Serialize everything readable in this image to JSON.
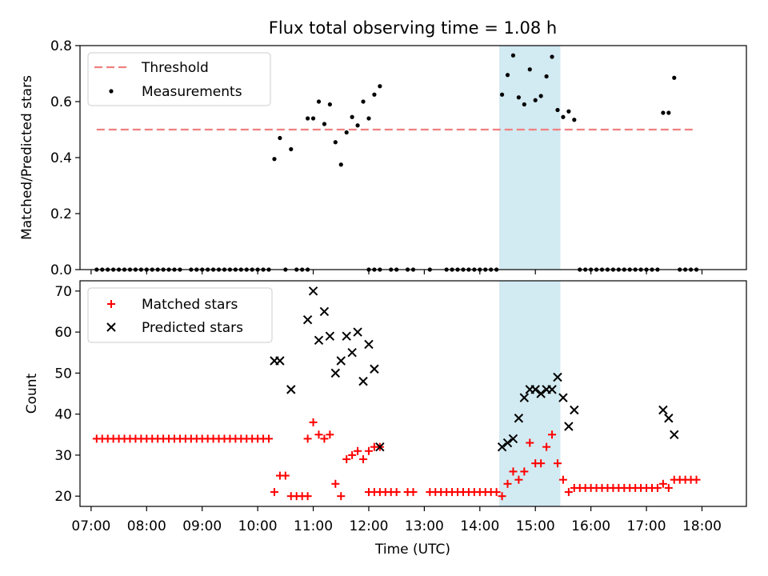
{
  "chart_data": [
    {
      "type": "scatter",
      "title": "Flux total observing time = 1.08 h",
      "xlabel": "",
      "ylabel": "Matched/Predicted stars",
      "ylim": [
        0,
        0.8
      ],
      "yticks": [
        "0.0",
        "0.2",
        "0.4",
        "0.6",
        "0.8"
      ],
      "xlim": [
        "06:48",
        "18:48"
      ],
      "legend_position": "top-left",
      "highlight_span": {
        "from": "14:21",
        "to": "15:27",
        "color": "#add8e6"
      },
      "threshold": {
        "name": "Threshold",
        "y": 0.5,
        "x_from": "07:06",
        "x_to": "17:54",
        "color": "#f08080"
      },
      "series": [
        {
          "name": "Measurements",
          "color": "#000000",
          "points": [
            [
              "07:06",
              0
            ],
            [
              "07:12",
              0
            ],
            [
              "07:18",
              0
            ],
            [
              "07:24",
              0
            ],
            [
              "07:30",
              0
            ],
            [
              "07:36",
              0
            ],
            [
              "07:42",
              0
            ],
            [
              "07:48",
              0
            ],
            [
              "07:54",
              0
            ],
            [
              "08:00",
              0
            ],
            [
              "08:06",
              0
            ],
            [
              "08:12",
              0
            ],
            [
              "08:18",
              0
            ],
            [
              "08:24",
              0
            ],
            [
              "08:30",
              0
            ],
            [
              "08:36",
              0
            ],
            [
              "08:48",
              0
            ],
            [
              "08:54",
              0
            ],
            [
              "09:00",
              0
            ],
            [
              "09:06",
              0
            ],
            [
              "09:12",
              0
            ],
            [
              "09:18",
              0
            ],
            [
              "09:24",
              0
            ],
            [
              "09:30",
              0
            ],
            [
              "09:36",
              0
            ],
            [
              "09:42",
              0
            ],
            [
              "09:48",
              0
            ],
            [
              "09:54",
              0
            ],
            [
              "10:00",
              0
            ],
            [
              "10:06",
              0
            ],
            [
              "10:12",
              0
            ],
            [
              "10:18",
              0.395
            ],
            [
              "10:24",
              0.47
            ],
            [
              "10:30",
              0
            ],
            [
              "10:36",
              0.43
            ],
            [
              "10:42",
              0
            ],
            [
              "10:48",
              0
            ],
            [
              "10:54",
              0
            ],
            [
              "10:54",
              0.54
            ],
            [
              "11:00",
              0.54
            ],
            [
              "11:06",
              0.6
            ],
            [
              "11:12",
              0.52
            ],
            [
              "11:18",
              0.59
            ],
            [
              "11:24",
              0.455
            ],
            [
              "11:30",
              0.375
            ],
            [
              "11:36",
              0.49
            ],
            [
              "11:42",
              0.545
            ],
            [
              "11:48",
              0.515
            ],
            [
              "11:54",
              0.6
            ],
            [
              "12:00",
              0.54
            ],
            [
              "12:06",
              0.625
            ],
            [
              "12:12",
              0.655
            ],
            [
              "12:00",
              0
            ],
            [
              "12:06",
              0
            ],
            [
              "12:12",
              0
            ],
            [
              "12:24",
              0
            ],
            [
              "12:30",
              0
            ],
            [
              "12:42",
              0
            ],
            [
              "12:48",
              0
            ],
            [
              "13:06",
              0
            ],
            [
              "13:24",
              0
            ],
            [
              "13:30",
              0
            ],
            [
              "13:36",
              0
            ],
            [
              "13:42",
              0
            ],
            [
              "13:48",
              0
            ],
            [
              "13:54",
              0
            ],
            [
              "14:00",
              0
            ],
            [
              "14:06",
              0
            ],
            [
              "14:12",
              0
            ],
            [
              "14:18",
              0
            ],
            [
              "14:24",
              0.625
            ],
            [
              "14:30",
              0.695
            ],
            [
              "14:36",
              0.765
            ],
            [
              "14:42",
              0.615
            ],
            [
              "14:48",
              0.59
            ],
            [
              "14:54",
              0.715
            ],
            [
              "15:00",
              0.605
            ],
            [
              "15:06",
              0.62
            ],
            [
              "15:12",
              0.69
            ],
            [
              "15:18",
              0.76
            ],
            [
              "15:24",
              0.57
            ],
            [
              "15:30",
              0.545
            ],
            [
              "15:36",
              0.565
            ],
            [
              "15:42",
              0.535
            ],
            [
              "15:48",
              0
            ],
            [
              "15:54",
              0
            ],
            [
              "16:00",
              0
            ],
            [
              "16:06",
              0
            ],
            [
              "16:12",
              0
            ],
            [
              "16:18",
              0
            ],
            [
              "16:24",
              0
            ],
            [
              "16:30",
              0
            ],
            [
              "16:36",
              0
            ],
            [
              "16:42",
              0
            ],
            [
              "16:48",
              0
            ],
            [
              "16:54",
              0
            ],
            [
              "17:00",
              0
            ],
            [
              "17:06",
              0
            ],
            [
              "17:12",
              0
            ],
            [
              "17:18",
              0.56
            ],
            [
              "17:24",
              0.56
            ],
            [
              "17:30",
              0.685
            ],
            [
              "17:36",
              0
            ],
            [
              "17:42",
              0
            ],
            [
              "17:48",
              0
            ],
            [
              "17:54",
              0
            ]
          ]
        }
      ]
    },
    {
      "type": "scatter",
      "title": "",
      "xlabel": "Time (UTC)",
      "ylabel": "Count",
      "ylim": [
        17.5,
        72.5
      ],
      "yticks": [
        "20",
        "30",
        "40",
        "50",
        "60",
        "70"
      ],
      "xlim": [
        "06:48",
        "18:48"
      ],
      "xticks": [
        "07:00",
        "08:00",
        "09:00",
        "10:00",
        "11:00",
        "12:00",
        "13:00",
        "14:00",
        "15:00",
        "16:00",
        "17:00",
        "18:00"
      ],
      "legend_position": "top-left",
      "highlight_span": {
        "from": "14:21",
        "to": "15:27",
        "color": "#add8e6"
      },
      "series": [
        {
          "name": "Matched stars",
          "marker": "plus",
          "color": "#ff0000",
          "points": [
            [
              "07:06",
              34
            ],
            [
              "07:12",
              34
            ],
            [
              "07:18",
              34
            ],
            [
              "07:24",
              34
            ],
            [
              "07:30",
              34
            ],
            [
              "07:36",
              34
            ],
            [
              "07:42",
              34
            ],
            [
              "07:48",
              34
            ],
            [
              "07:54",
              34
            ],
            [
              "08:00",
              34
            ],
            [
              "08:06",
              34
            ],
            [
              "08:12",
              34
            ],
            [
              "08:18",
              34
            ],
            [
              "08:24",
              34
            ],
            [
              "08:30",
              34
            ],
            [
              "08:36",
              34
            ],
            [
              "08:42",
              34
            ],
            [
              "08:48",
              34
            ],
            [
              "08:54",
              34
            ],
            [
              "09:00",
              34
            ],
            [
              "09:06",
              34
            ],
            [
              "09:12",
              34
            ],
            [
              "09:18",
              34
            ],
            [
              "09:24",
              34
            ],
            [
              "09:30",
              34
            ],
            [
              "09:36",
              34
            ],
            [
              "09:42",
              34
            ],
            [
              "09:48",
              34
            ],
            [
              "09:54",
              34
            ],
            [
              "10:00",
              34
            ],
            [
              "10:06",
              34
            ],
            [
              "10:12",
              34
            ],
            [
              "10:18",
              21
            ],
            [
              "10:24",
              25
            ],
            [
              "10:30",
              25
            ],
            [
              "10:36",
              20
            ],
            [
              "10:42",
              20
            ],
            [
              "10:48",
              20
            ],
            [
              "10:54",
              20
            ],
            [
              "10:54",
              34
            ],
            [
              "11:00",
              38
            ],
            [
              "11:06",
              35
            ],
            [
              "11:12",
              34
            ],
            [
              "11:18",
              35
            ],
            [
              "11:24",
              23
            ],
            [
              "11:30",
              20
            ],
            [
              "11:36",
              29
            ],
            [
              "11:42",
              30
            ],
            [
              "11:48",
              31
            ],
            [
              "11:54",
              29
            ],
            [
              "12:00",
              31
            ],
            [
              "12:06",
              32
            ],
            [
              "12:12",
              32
            ],
            [
              "12:00",
              21
            ],
            [
              "12:06",
              21
            ],
            [
              "12:12",
              21
            ],
            [
              "12:18",
              21
            ],
            [
              "12:24",
              21
            ],
            [
              "12:30",
              21
            ],
            [
              "12:42",
              21
            ],
            [
              "12:48",
              21
            ],
            [
              "13:06",
              21
            ],
            [
              "13:12",
              21
            ],
            [
              "13:18",
              21
            ],
            [
              "13:24",
              21
            ],
            [
              "13:30",
              21
            ],
            [
              "13:36",
              21
            ],
            [
              "13:42",
              21
            ],
            [
              "13:48",
              21
            ],
            [
              "13:54",
              21
            ],
            [
              "14:00",
              21
            ],
            [
              "14:06",
              21
            ],
            [
              "14:12",
              21
            ],
            [
              "14:18",
              21
            ],
            [
              "14:24",
              20
            ],
            [
              "14:30",
              23
            ],
            [
              "14:36",
              26
            ],
            [
              "14:42",
              24
            ],
            [
              "14:48",
              26
            ],
            [
              "14:54",
              33
            ],
            [
              "15:00",
              28
            ],
            [
              "15:06",
              28
            ],
            [
              "15:12",
              32
            ],
            [
              "15:18",
              35
            ],
            [
              "15:24",
              28
            ],
            [
              "15:30",
              24
            ],
            [
              "15:36",
              21
            ],
            [
              "15:42",
              22
            ],
            [
              "15:48",
              22
            ],
            [
              "15:54",
              22
            ],
            [
              "16:00",
              22
            ],
            [
              "16:06",
              22
            ],
            [
              "16:12",
              22
            ],
            [
              "16:18",
              22
            ],
            [
              "16:24",
              22
            ],
            [
              "16:30",
              22
            ],
            [
              "16:36",
              22
            ],
            [
              "16:42",
              22
            ],
            [
              "16:48",
              22
            ],
            [
              "16:54",
              22
            ],
            [
              "17:00",
              22
            ],
            [
              "17:06",
              22
            ],
            [
              "17:12",
              22
            ],
            [
              "17:18",
              23
            ],
            [
              "17:24",
              22
            ],
            [
              "17:30",
              24
            ],
            [
              "17:36",
              24
            ],
            [
              "17:42",
              24
            ],
            [
              "17:48",
              24
            ],
            [
              "17:54",
              24
            ]
          ]
        },
        {
          "name": "Predicted stars",
          "marker": "x",
          "color": "#000000",
          "points": [
            [
              "10:18",
              53
            ],
            [
              "10:24",
              53
            ],
            [
              "10:36",
              46
            ],
            [
              "10:54",
              63
            ],
            [
              "11:00",
              70
            ],
            [
              "11:06",
              58
            ],
            [
              "11:12",
              65
            ],
            [
              "11:18",
              59
            ],
            [
              "11:24",
              50
            ],
            [
              "11:30",
              53
            ],
            [
              "11:36",
              59
            ],
            [
              "11:42",
              55
            ],
            [
              "11:48",
              60
            ],
            [
              "11:54",
              48
            ],
            [
              "12:00",
              57
            ],
            [
              "12:06",
              51
            ],
            [
              "12:12",
              32
            ],
            [
              "14:24",
              32
            ],
            [
              "14:30",
              33
            ],
            [
              "14:36",
              34
            ],
            [
              "14:42",
              39
            ],
            [
              "14:48",
              44
            ],
            [
              "14:54",
              46
            ],
            [
              "15:00",
              46
            ],
            [
              "15:06",
              45
            ],
            [
              "15:12",
              46
            ],
            [
              "15:18",
              46
            ],
            [
              "15:24",
              49
            ],
            [
              "15:30",
              44
            ],
            [
              "15:36",
              37
            ],
            [
              "15:42",
              41
            ],
            [
              "17:18",
              41
            ],
            [
              "17:24",
              39
            ],
            [
              "17:30",
              35
            ]
          ]
        }
      ]
    }
  ]
}
